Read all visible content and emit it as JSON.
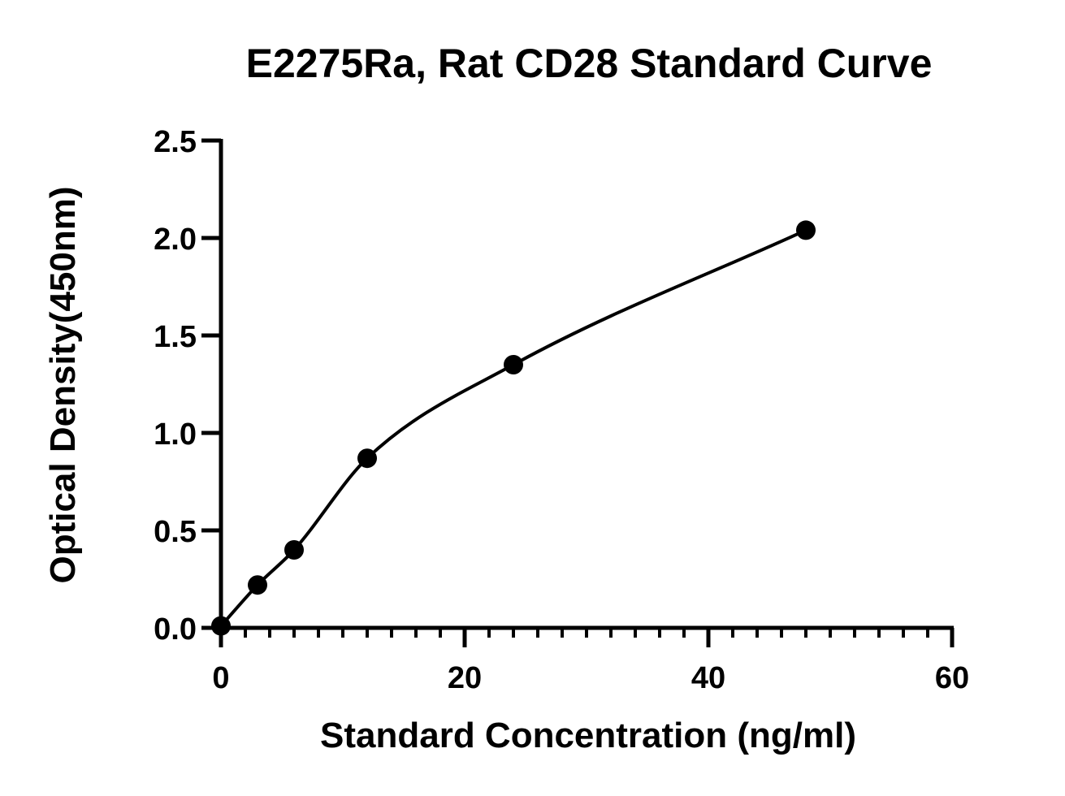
{
  "chart_data": {
    "type": "scatter",
    "title": "E2275Ra, Rat CD28 Standard Curve",
    "xlabel": "Standard Concentration (ng/ml)",
    "ylabel": "Optical Density(450nm)",
    "xlim": [
      0,
      60
    ],
    "ylim": [
      0,
      2.5
    ],
    "x_ticks": [
      "0",
      "20",
      "40",
      "60"
    ],
    "y_ticks": [
      "0.0",
      "0.5",
      "1.0",
      "1.5",
      "2.0",
      "2.5"
    ],
    "x_minor_step": 2,
    "grid": false,
    "legend": "none",
    "series": [
      {
        "x": [
          0,
          3,
          6,
          12,
          24,
          48
        ],
        "y": [
          0.01,
          0.22,
          0.4,
          0.87,
          1.35,
          2.04
        ],
        "fit": "curve"
      }
    ],
    "colors": {
      "marks": "#000000",
      "background": "#ffffff"
    }
  }
}
